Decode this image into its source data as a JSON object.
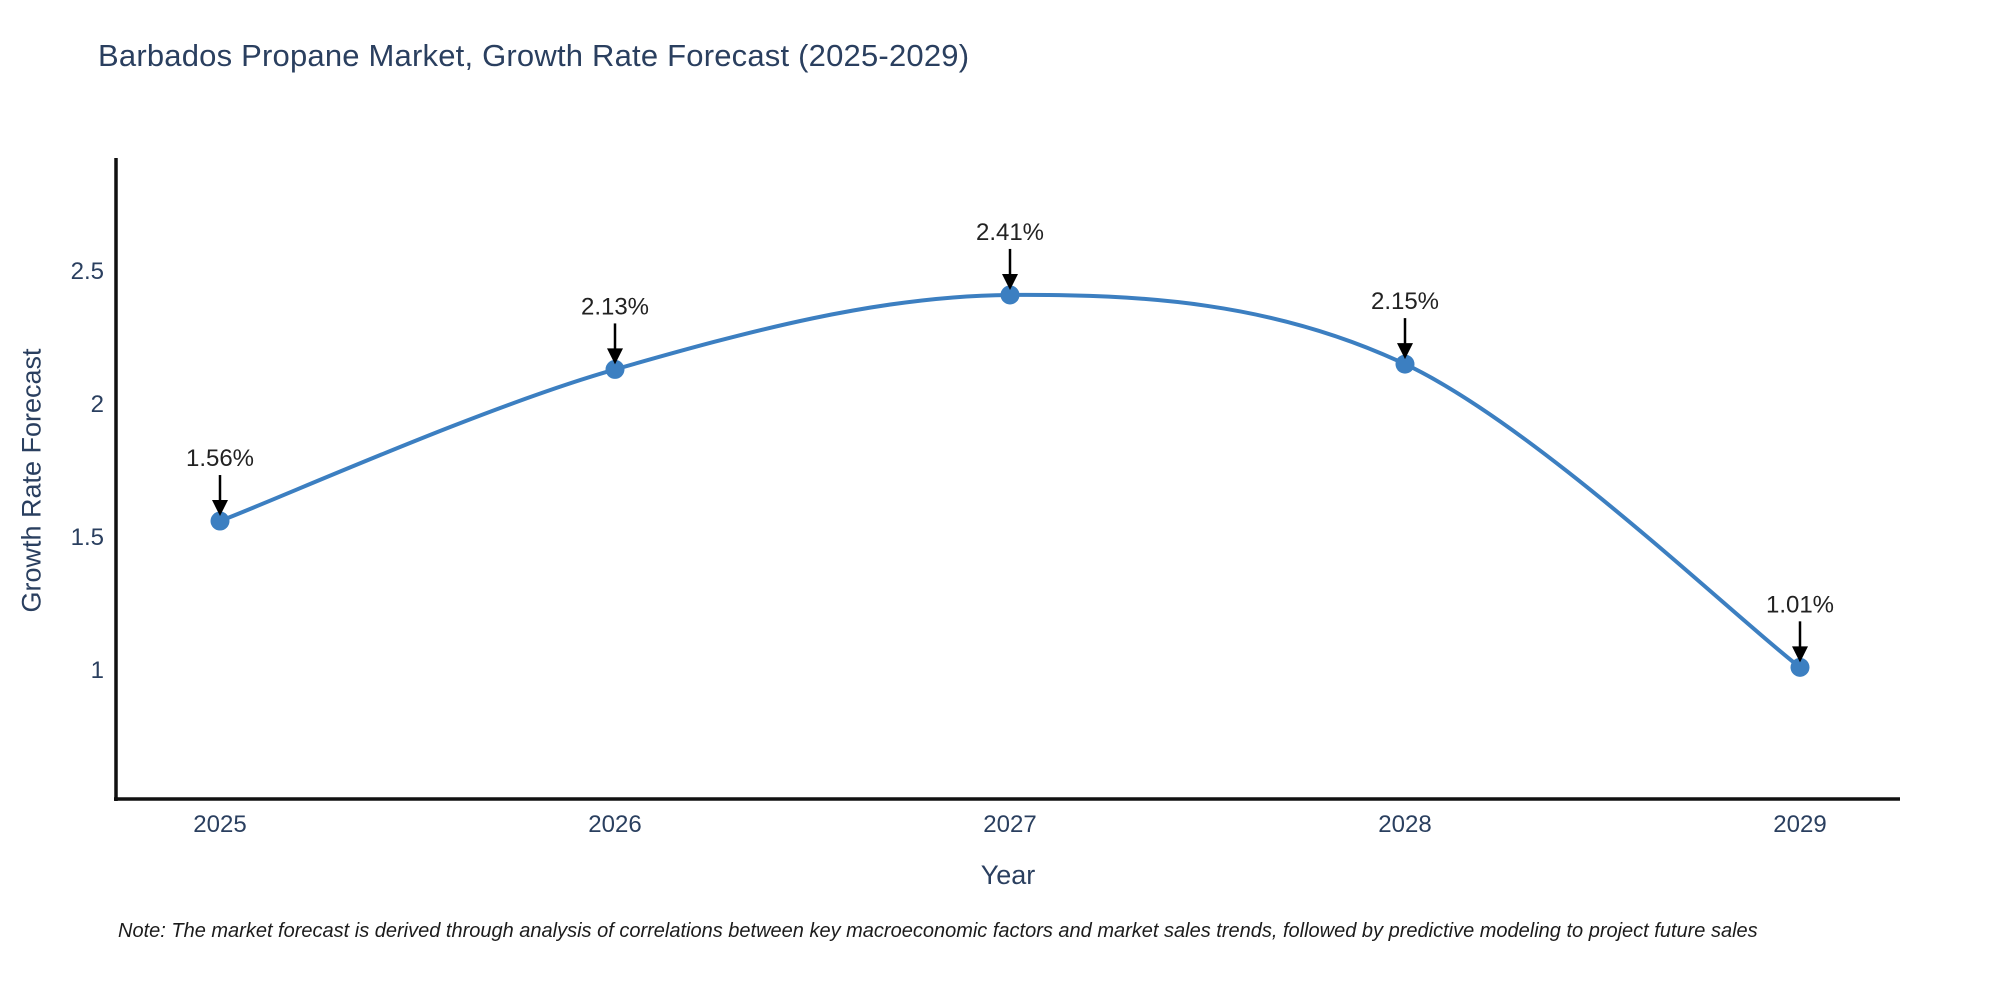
{
  "chart_data": {
    "type": "line",
    "title": "Barbados Propane Market, Growth Rate Forecast (2025-2029)",
    "xlabel": "Year",
    "ylabel": "Growth Rate Forecast",
    "x": [
      2025,
      2026,
      2027,
      2028,
      2029
    ],
    "series": [
      {
        "name": "Growth Rate Forecast",
        "values": [
          1.56,
          2.13,
          2.41,
          2.15,
          1.01
        ]
      }
    ],
    "point_labels": [
      "1.56%",
      "2.13%",
      "2.41%",
      "2.15%",
      "1.01%"
    ],
    "xtick_labels": [
      "2025",
      "2026",
      "2027",
      "2028",
      "2029"
    ],
    "yticks": [
      1,
      1.5,
      2,
      2.5
    ],
    "ytick_labels": [
      "1",
      "1.5",
      "2",
      "2.5"
    ],
    "ylim": [
      0.52,
      2.93
    ],
    "line_shape": "spline",
    "grid": false,
    "legend_position": "none",
    "colors": {
      "line": "#3c7fc1",
      "marker": "#3c7fc1",
      "axis": "#111111",
      "axis_text": "#2a3f5f",
      "point_label_text": "#222222",
      "arrow": "#000000",
      "background": "#ffffff"
    }
  },
  "note": "Note: The market forecast is derived through analysis of correlations between key macroeconomic factors and market sales trends, followed by predictive modeling to project future sales"
}
